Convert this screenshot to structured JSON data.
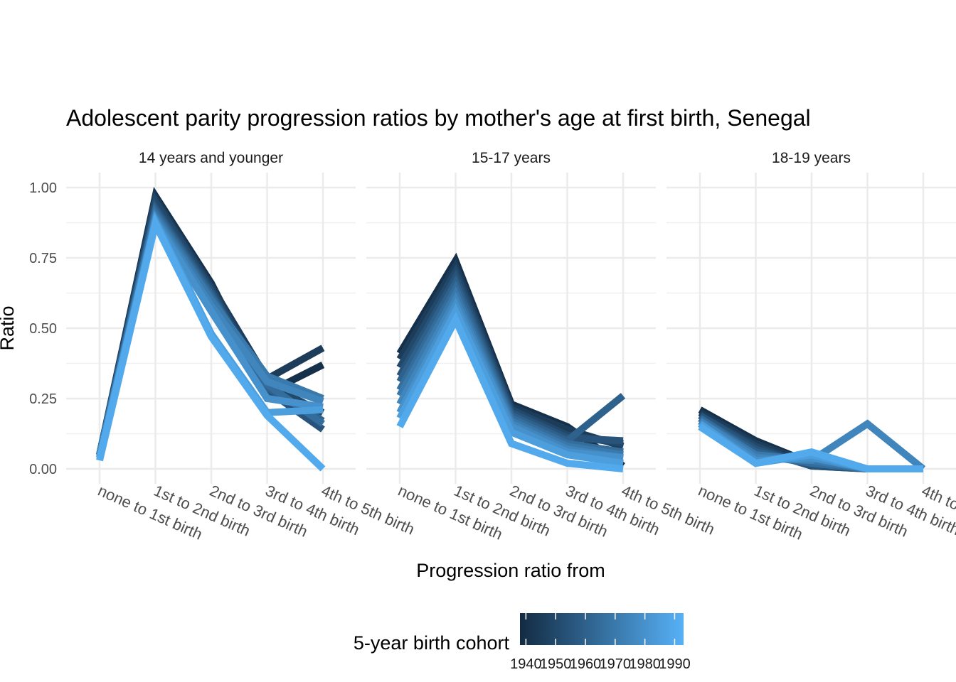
{
  "chart_data": {
    "type": "line",
    "title": "Adolescent parity progression ratios by mother's age at first birth,  Senegal",
    "xlabel": "Progression ratio from",
    "ylabel": "Ratio",
    "ylim": [
      0,
      1
    ],
    "y_ticks": [
      "0.00",
      "0.25",
      "0.50",
      "0.75",
      "1.00"
    ],
    "y_tick_values": [
      0,
      0.25,
      0.5,
      0.75,
      1.0
    ],
    "categories": [
      "none to 1st birth",
      "1st to 2nd birth",
      "2nd to 3rd birth",
      "3rd to 4th birth",
      "4th to 5th birth"
    ],
    "grid": true,
    "legend": {
      "title": "5-year birth cohort",
      "type": "colorbar",
      "placement": "bottom",
      "ticks": [
        "1940",
        "1950",
        "1960",
        "1970",
        "1980",
        "1990"
      ],
      "tick_values": [
        1940,
        1950,
        1960,
        1970,
        1980,
        1990
      ],
      "range": [
        1938,
        1993
      ],
      "color_low": "#132B43",
      "color_high": "#56B1F7"
    },
    "facets": [
      {
        "label": "14 years and younger",
        "series": [
          {
            "cohort": 1940,
            "values": [
              0.05,
              0.97,
              0.66,
              0.27,
              0.37
            ]
          },
          {
            "cohort": 1945,
            "values": [
              0.05,
              0.96,
              0.65,
              0.32,
              0.43
            ]
          },
          {
            "cohort": 1950,
            "values": [
              0.05,
              0.95,
              0.64,
              0.3,
              0.2
            ]
          },
          {
            "cohort": 1955,
            "values": [
              0.05,
              0.93,
              0.63,
              0.28,
              0.14
            ]
          },
          {
            "cohort": 1960,
            "values": [
              0.05,
              0.92,
              0.62,
              0.29,
              0.17
            ]
          },
          {
            "cohort": 1965,
            "values": [
              0.05,
              0.91,
              0.61,
              0.3,
              0.16
            ]
          },
          {
            "cohort": 1970,
            "values": [
              0.05,
              0.9,
              0.6,
              0.33,
              0.25
            ]
          },
          {
            "cohort": 1975,
            "values": [
              0.04,
              0.89,
              0.58,
              0.31,
              0.24
            ]
          },
          {
            "cohort": 1980,
            "values": [
              0.04,
              0.88,
              0.56,
              0.25,
              0.22
            ]
          },
          {
            "cohort": 1985,
            "values": [
              0.04,
              0.88,
              0.48,
              0.2,
              0.21
            ]
          },
          {
            "cohort": 1990,
            "values": [
              0.03,
              0.87,
              0.47,
              0.19,
              0.0
            ]
          }
        ]
      },
      {
        "label": "15-17 years",
        "series": [
          {
            "cohort": 1940,
            "values": [
              0.41,
              0.74,
              0.23,
              0.15,
              0.01
            ]
          },
          {
            "cohort": 1945,
            "values": [
              0.39,
              0.72,
              0.22,
              0.14,
              0.08
            ]
          },
          {
            "cohort": 1950,
            "values": [
              0.36,
              0.7,
              0.21,
              0.12,
              0.09
            ]
          },
          {
            "cohort": 1955,
            "values": [
              0.33,
              0.68,
              0.2,
              0.11,
              0.1
            ]
          },
          {
            "cohort": 1960,
            "values": [
              0.31,
              0.66,
              0.19,
              0.1,
              0.26
            ]
          },
          {
            "cohort": 1965,
            "values": [
              0.28,
              0.64,
              0.18,
              0.09,
              0.06
            ]
          },
          {
            "cohort": 1970,
            "values": [
              0.26,
              0.62,
              0.17,
              0.08,
              0.05
            ]
          },
          {
            "cohort": 1975,
            "values": [
              0.23,
              0.6,
              0.16,
              0.07,
              0.04
            ]
          },
          {
            "cohort": 1980,
            "values": [
              0.2,
              0.58,
              0.15,
              0.06,
              0.04
            ]
          },
          {
            "cohort": 1985,
            "values": [
              0.18,
              0.56,
              0.13,
              0.05,
              0.02
            ]
          },
          {
            "cohort": 1990,
            "values": [
              0.15,
              0.53,
              0.09,
              0.02,
              0.0
            ]
          }
        ]
      },
      {
        "label": "18-19 years",
        "series": [
          {
            "cohort": 1940,
            "values": [
              0.21,
              0.1,
              0.02,
              0.0,
              0.0
            ]
          },
          {
            "cohort": 1945,
            "values": [
              0.2,
              0.09,
              0.02,
              0.0,
              0.0
            ]
          },
          {
            "cohort": 1950,
            "values": [
              0.19,
              0.08,
              0.01,
              0.0,
              0.0
            ]
          },
          {
            "cohort": 1955,
            "values": [
              0.19,
              0.07,
              0.01,
              0.0,
              0.0
            ]
          },
          {
            "cohort": 1960,
            "values": [
              0.18,
              0.06,
              0.02,
              0.0,
              0.0
            ]
          },
          {
            "cohort": 1965,
            "values": [
              0.18,
              0.05,
              0.02,
              0.0,
              0.0
            ]
          },
          {
            "cohort": 1970,
            "values": [
              0.17,
              0.05,
              0.03,
              0.0,
              0.0
            ]
          },
          {
            "cohort": 1975,
            "values": [
              0.17,
              0.04,
              0.03,
              0.16,
              0.0
            ]
          },
          {
            "cohort": 1980,
            "values": [
              0.16,
              0.03,
              0.04,
              0.0,
              0.0
            ]
          },
          {
            "cohort": 1985,
            "values": [
              0.16,
              0.02,
              0.05,
              0.0,
              0.0
            ]
          },
          {
            "cohort": 1990,
            "values": [
              0.15,
              0.02,
              0.06,
              0.0,
              0.0
            ]
          }
        ]
      }
    ]
  }
}
